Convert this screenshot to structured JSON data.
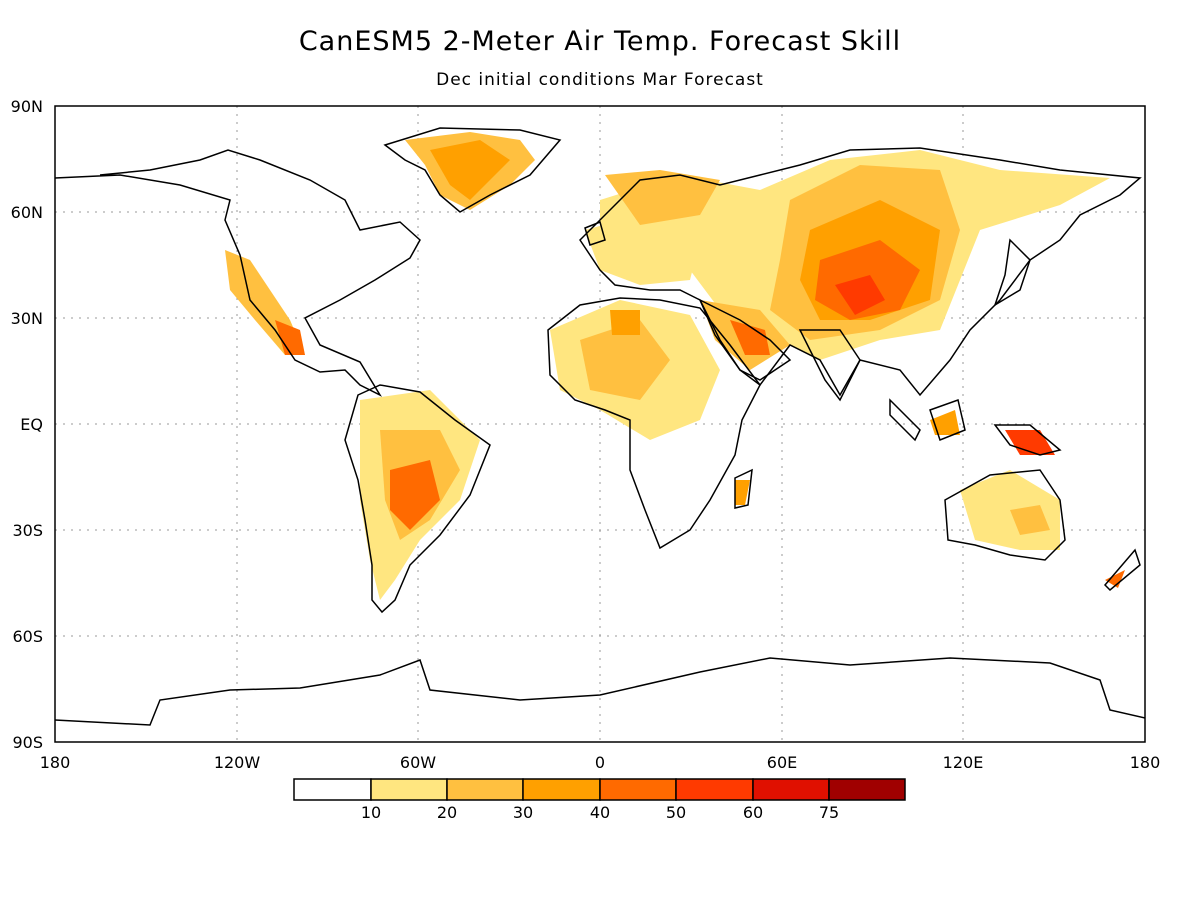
{
  "title": "CanESM5 2-Meter Air Temp. Forecast Skill",
  "subtitle": "Dec initial conditions   Mar Forecast",
  "map": {
    "lat_labels": [
      "90N",
      "60N",
      "30N",
      "EQ",
      "30S",
      "60S",
      "90S"
    ],
    "lon_labels": [
      "180",
      "120W",
      "60W",
      "0",
      "60E",
      "120E",
      "180"
    ],
    "grid": "dotted"
  },
  "legend": {
    "thresholds": [
      "10",
      "20",
      "30",
      "40",
      "50",
      "60",
      "75"
    ],
    "colors": [
      "#ffffff",
      "#ffe680",
      "#ffc040",
      "#ffa000",
      "#ff6a00",
      "#ff3a00",
      "#e01000",
      "#a00000"
    ]
  }
}
